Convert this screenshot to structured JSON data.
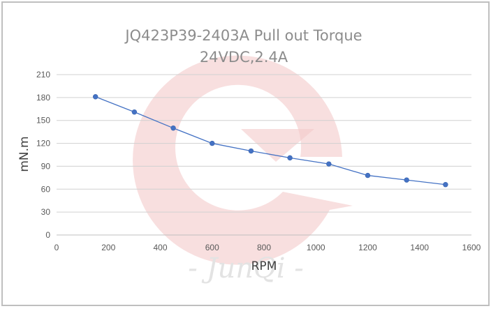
{
  "chart_data": {
    "type": "line",
    "title": "JQ423P39-2403A Pull out Torque",
    "subtitle": "24VDC,2.4A",
    "xlabel": "RPM",
    "ylabel": "mN.m",
    "xlim": [
      0,
      1600
    ],
    "ylim": [
      0,
      210
    ],
    "x_ticks": [
      "0",
      "200",
      "400",
      "600",
      "800",
      "1000",
      "1200",
      "1400",
      "1600"
    ],
    "y_ticks": [
      "0",
      "30",
      "60",
      "90",
      "120",
      "150",
      "180",
      "210"
    ],
    "grid": true,
    "legend": "none",
    "series": [
      {
        "color": "#4472c4",
        "x": [
          150,
          300,
          450,
          600,
          750,
          900,
          1050,
          1200,
          1350,
          1500
        ],
        "y": [
          181,
          161,
          140,
          120,
          110,
          101,
          93,
          78,
          72,
          66
        ]
      }
    ]
  },
  "watermark": {
    "text": "- JunQi -"
  }
}
